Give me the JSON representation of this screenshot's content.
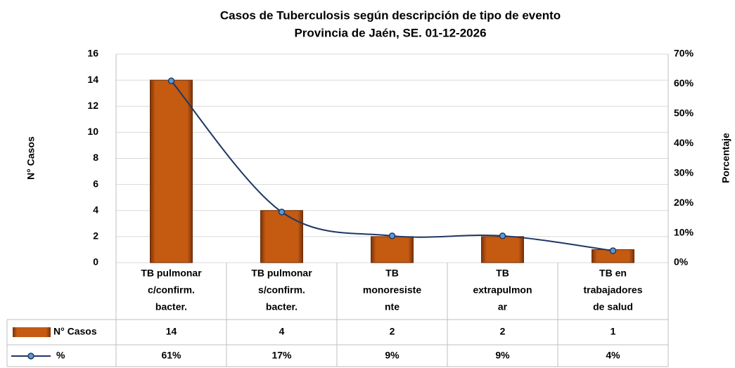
{
  "chart_data": {
    "type": "bar-line",
    "title": "Casos de Tuberculosis según descripción de tipo de evento",
    "subtitle": "Provincia de Jaén, SE. 01-12-2026",
    "y_label": "N° Casos",
    "y2_label": "Porcentaje",
    "categories": [
      [
        "TB pulmonar",
        "c/confirm.",
        "bacter."
      ],
      [
        "TB pulmonar",
        "s/confirm.",
        "bacter."
      ],
      [
        "TB",
        "monoresiste",
        "nte"
      ],
      [
        "TB",
        "extrapulmon",
        "ar"
      ],
      [
        "TB en",
        "trabajadores",
        "de salud"
      ]
    ],
    "series": [
      {
        "name": "N° Casos",
        "type": "bar",
        "color": "#c55a11",
        "values": [
          14,
          4,
          2,
          2,
          1
        ]
      },
      {
        "name": "%",
        "type": "line",
        "axis": "y2",
        "color": "#1f3864",
        "values": [
          61,
          17,
          9,
          9,
          4
        ],
        "value_labels": [
          "61%",
          "17%",
          "9%",
          "9%",
          "4%"
        ]
      }
    ],
    "ylim": [
      0,
      16
    ],
    "yticks": [
      0,
      2,
      4,
      6,
      8,
      10,
      12,
      14,
      16
    ],
    "y2lim": [
      0,
      70
    ],
    "y2ticks": [
      {
        "value": 0,
        "label": "0%"
      },
      {
        "value": 10,
        "label": "10%"
      },
      {
        "value": 20,
        "label": "20%"
      },
      {
        "value": 30,
        "label": "30%"
      },
      {
        "value": 40,
        "label": "40%"
      },
      {
        "value": 50,
        "label": "50%"
      },
      {
        "value": 60,
        "label": "60%"
      },
      {
        "value": 70,
        "label": "70%"
      }
    ],
    "grid": true
  }
}
